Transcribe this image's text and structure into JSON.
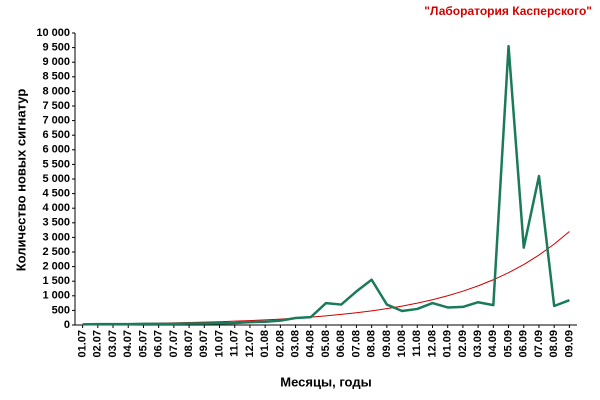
{
  "chart_data": {
    "type": "line",
    "title": "\"Лаборатория Касперского\"",
    "xlabel": "Месяцы, годы",
    "ylabel": "Количество новых сигнатур",
    "categories": [
      "01.07",
      "02.07",
      "03.07",
      "04.07",
      "05.07",
      "06.07",
      "07.07",
      "08.07",
      "09.07",
      "10.07",
      "11.07",
      "12.07",
      "01.08",
      "02.08",
      "03.08",
      "04.08",
      "05.08",
      "06.08",
      "07.08",
      "08.08",
      "09.08",
      "10.08",
      "11.08",
      "12.08",
      "01.09",
      "02.09",
      "03.09",
      "04.09",
      "05.09",
      "06.09",
      "07.09",
      "08.09",
      "09.09"
    ],
    "series": [
      {
        "color": "#1a7a5a",
        "values": [
          20,
          30,
          30,
          30,
          40,
          40,
          40,
          50,
          50,
          60,
          70,
          100,
          110,
          150,
          240,
          270,
          750,
          700,
          1150,
          1550,
          700,
          480,
          550,
          750,
          600,
          620,
          780,
          680,
          9550,
          2650,
          5100,
          650,
          850
        ]
      },
      {
        "color": "#cc0000",
        "values": [
          31,
          36,
          41,
          47,
          55,
          63,
          73,
          85,
          98,
          113,
          131,
          151,
          175,
          202,
          234,
          270,
          313,
          362,
          418,
          484,
          560,
          647,
          749,
          866,
          1001,
          1158,
          1339,
          1549,
          1791,
          2071,
          2395,
          2770,
          3203
        ]
      }
    ],
    "ylim": [
      0,
      10000
    ],
    "yticks": [
      0,
      500,
      {
        "value": 1000,
        "label": "1 000"
      },
      {
        "value": 1500,
        "label": "1 500"
      },
      {
        "value": 2000,
        "label": "2 000"
      },
      {
        "value": 2500,
        "label": "2 500"
      },
      {
        "value": 3000,
        "label": "3 000"
      },
      {
        "value": 3500,
        "label": "3 500"
      },
      {
        "value": 4000,
        "label": "4 000"
      },
      {
        "value": 4500,
        "label": "4 500"
      },
      {
        "value": 5000,
        "label": "5 000"
      },
      {
        "value": 5500,
        "label": "5 500"
      },
      {
        "value": 6000,
        "label": "6 000"
      },
      {
        "value": 6500,
        "label": "6 500"
      },
      {
        "value": 7000,
        "label": "7 000"
      },
      {
        "value": 7500,
        "label": "7 500"
      },
      {
        "value": 8000,
        "label": "8 000"
      },
      {
        "value": 8500,
        "label": "8 500"
      },
      {
        "value": 9000,
        "label": "9 000"
      },
      {
        "value": 9500,
        "label": "9 500"
      },
      {
        "value": 10000,
        "label": "10 000"
      }
    ]
  }
}
